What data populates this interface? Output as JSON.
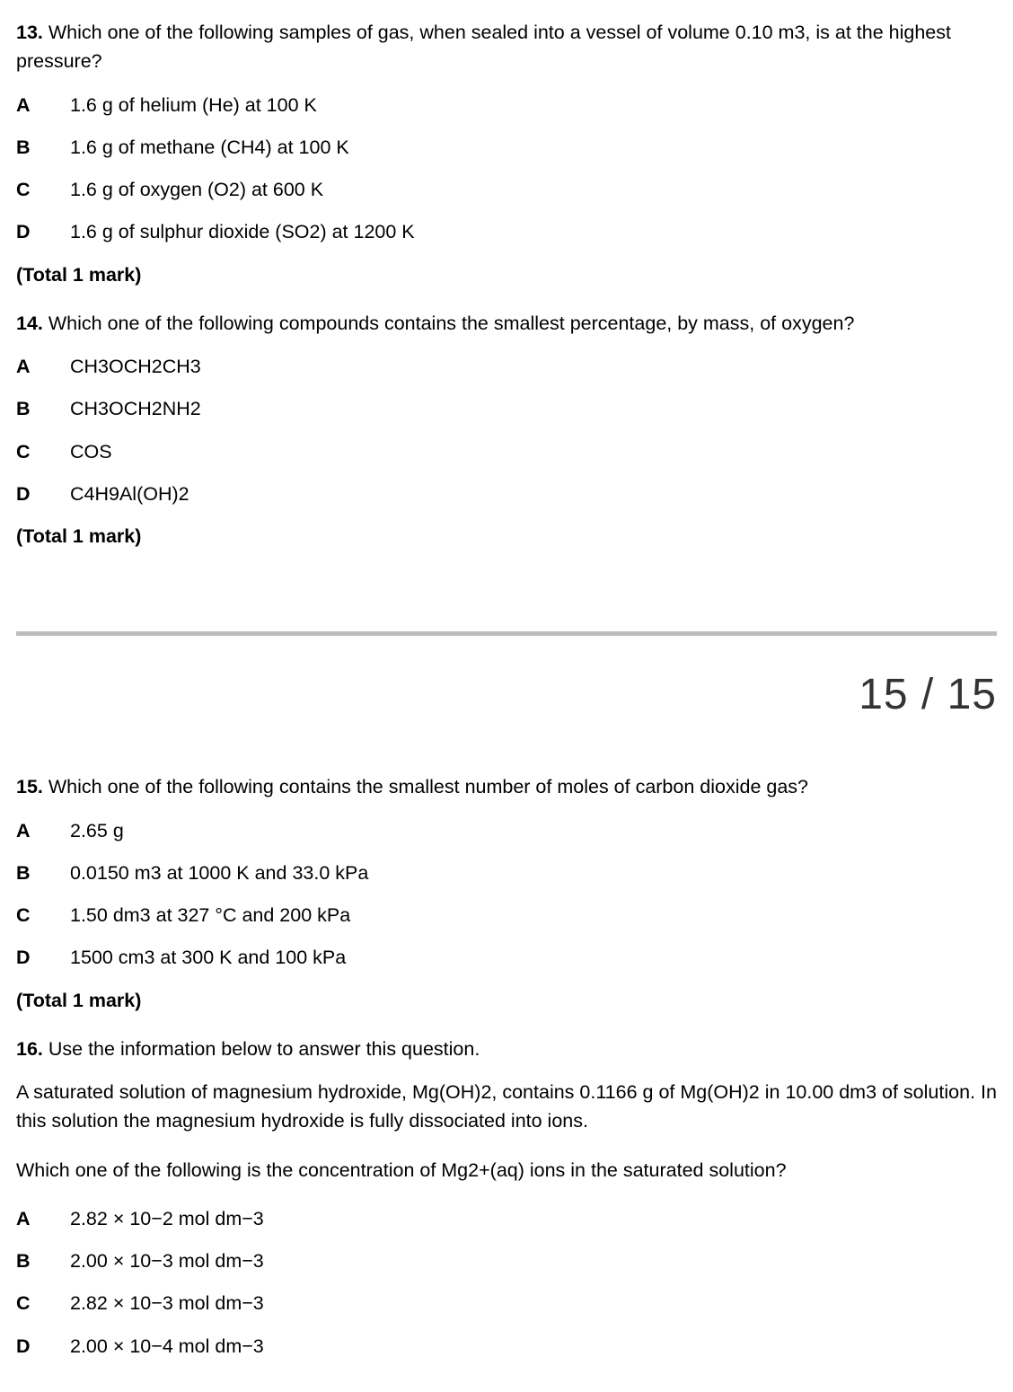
{
  "q13": {
    "number": "13.",
    "text": "Which one of the following samples of gas, when sealed into a vessel of volume 0.10 m3, is at the highest pressure?",
    "options": {
      "A": "1.6 g of helium (He) at 100 K",
      "B": "1.6 g of methane (CH4) at 100 K",
      "C": "1.6 g of oxygen (O2) at 600 K",
      "D": "1.6 g of sulphur dioxide (SO2) at 1200 K"
    },
    "total": "(Total 1 mark)"
  },
  "q14": {
    "number": "14.",
    "text": "Which one of the following compounds contains the smallest percentage, by mass, of oxygen?",
    "options": {
      "A": "CH3OCH2CH3",
      "B": "CH3OCH2NH2",
      "C": "COS",
      "D": "C4H9Al(OH)2"
    },
    "total": "(Total 1 mark)"
  },
  "pageNumber": "15 / 15",
  "q15": {
    "number": "15.",
    "text": "Which one of the following contains the smallest number of moles of carbon dioxide gas?",
    "options": {
      "A": "2.65 g",
      "B": "0.0150 m3 at 1000 K and 33.0 kPa",
      "C": "1.50 dm3 at 327 °C and 200 kPa",
      "D": "1500 cm3 at 300 K and 100 kPa"
    },
    "total": "(Total 1 mark)"
  },
  "q16": {
    "number": "16.",
    "text": "Use the information below to answer this question.",
    "info1": "A saturated solution of magnesium hydroxide, Mg(OH)2, contains 0.1166 g of Mg(OH)2 in 10.00 dm3 of solution. In this solution the magnesium hydroxide is fully dissociated into ions.",
    "info2": "Which one of the following is the concentration of Mg2+(aq) ions in the saturated solution?",
    "options": {
      "A": "2.82 × 10−2 mol dm−3",
      "B": "2.00 × 10−3 mol dm−3",
      "C": "2.82 × 10−3 mol dm−3",
      "D": "2.00 × 10−4 mol dm−3"
    }
  },
  "letters": {
    "A": "A",
    "B": "B",
    "C": "C",
    "D": "D"
  }
}
